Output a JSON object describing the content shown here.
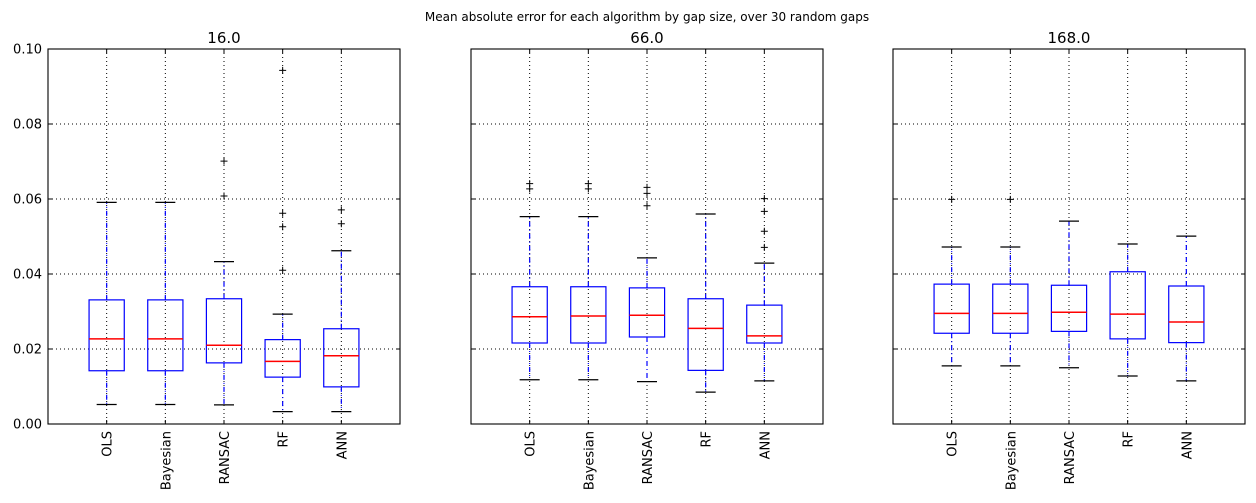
{
  "suptitle": "Mean absolute error for each algorithm by gap size, over 30 random gaps",
  "colors": {
    "box": "#0000ff",
    "median": "#ff0000",
    "whisker": "#0000ff",
    "cap": "#000000",
    "flier": "#000000",
    "grid": "#000000"
  },
  "chart_data": [
    {
      "type": "box",
      "title": "16.0",
      "categories": [
        "OLS",
        "Bayesian",
        "RANSAC",
        "RF",
        "ANN"
      ],
      "ylim": [
        0,
        0.1
      ],
      "yticks": [
        "0.00",
        "0.02",
        "0.04",
        "0.06",
        "0.08",
        "0.10"
      ],
      "grid": true,
      "boxes": [
        {
          "whislo": 0.0052,
          "q1": 0.0142,
          "med": 0.0227,
          "q3": 0.0331,
          "whishi": 0.0591,
          "fliers": []
        },
        {
          "whislo": 0.0052,
          "q1": 0.0142,
          "med": 0.0227,
          "q3": 0.0331,
          "whishi": 0.0591,
          "fliers": []
        },
        {
          "whislo": 0.0051,
          "q1": 0.0163,
          "med": 0.021,
          "q3": 0.0334,
          "whishi": 0.0433,
          "fliers": [
            0.0608,
            0.0701
          ]
        },
        {
          "whislo": 0.0033,
          "q1": 0.0125,
          "med": 0.0167,
          "q3": 0.0225,
          "whishi": 0.0293,
          "fliers": [
            0.041,
            0.0526,
            0.0562,
            0.0943
          ]
        },
        {
          "whislo": 0.0033,
          "q1": 0.0099,
          "med": 0.0182,
          "q3": 0.0254,
          "whishi": 0.0462,
          "fliers": [
            0.0534,
            0.0571
          ]
        }
      ]
    },
    {
      "type": "box",
      "title": "66.0",
      "categories": [
        "OLS",
        "Bayesian",
        "RANSAC",
        "RF",
        "ANN"
      ],
      "ylim": [
        0,
        0.1
      ],
      "grid": true,
      "boxes": [
        {
          "whislo": 0.0118,
          "q1": 0.0216,
          "med": 0.0286,
          "q3": 0.0366,
          "whishi": 0.0553,
          "fliers": [
            0.0627,
            0.0641
          ]
        },
        {
          "whislo": 0.0118,
          "q1": 0.0216,
          "med": 0.0288,
          "q3": 0.0366,
          "whishi": 0.0553,
          "fliers": [
            0.0627,
            0.0641
          ]
        },
        {
          "whislo": 0.0113,
          "q1": 0.0232,
          "med": 0.029,
          "q3": 0.0363,
          "whishi": 0.0443,
          "fliers": [
            0.0582,
            0.0615,
            0.0631
          ]
        },
        {
          "whislo": 0.0085,
          "q1": 0.0143,
          "med": 0.0255,
          "q3": 0.0334,
          "whishi": 0.056,
          "fliers": []
        },
        {
          "whislo": 0.0115,
          "q1": 0.0216,
          "med": 0.0235,
          "q3": 0.0317,
          "whishi": 0.0429,
          "fliers": [
            0.0471,
            0.0514,
            0.0567,
            0.0601
          ]
        }
      ]
    },
    {
      "type": "box",
      "title": "168.0",
      "categories": [
        "OLS",
        "Bayesian",
        "RANSAC",
        "RF",
        "ANN"
      ],
      "ylim": [
        0,
        0.1
      ],
      "grid": true,
      "boxes": [
        {
          "whislo": 0.0155,
          "q1": 0.0242,
          "med": 0.0295,
          "q3": 0.0373,
          "whishi": 0.0472,
          "fliers": [
            0.0599
          ]
        },
        {
          "whislo": 0.0155,
          "q1": 0.0242,
          "med": 0.0295,
          "q3": 0.0373,
          "whishi": 0.0472,
          "fliers": [
            0.0599
          ]
        },
        {
          "whislo": 0.015,
          "q1": 0.0247,
          "med": 0.0298,
          "q3": 0.037,
          "whishi": 0.0541,
          "fliers": []
        },
        {
          "whislo": 0.0128,
          "q1": 0.0227,
          "med": 0.0293,
          "q3": 0.0406,
          "whishi": 0.048,
          "fliers": []
        },
        {
          "whislo": 0.0115,
          "q1": 0.0217,
          "med": 0.0272,
          "q3": 0.0368,
          "whishi": 0.0501,
          "fliers": []
        }
      ]
    }
  ]
}
